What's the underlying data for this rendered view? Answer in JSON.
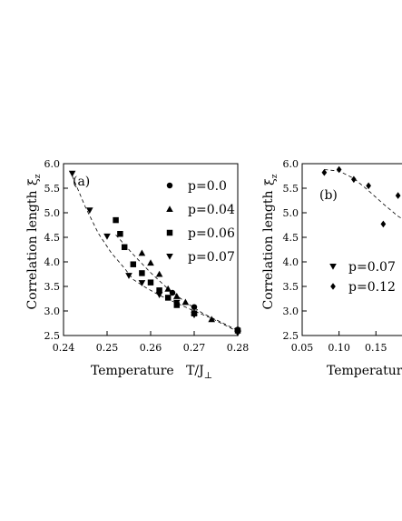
{
  "chart_data": [
    {
      "type": "scatter",
      "panel_label": "(a)",
      "xlabel": "Temperature   T/J",
      "xlabel_sub": "⊥",
      "ylabel": "Correlation length",
      "ylabel_symbol": "ξ",
      "ylabel_sub": "z",
      "xlim": [
        0.24,
        0.28
      ],
      "ylim": [
        2.5,
        6.0
      ],
      "xticks": [
        "0.24",
        "0.25",
        "0.26",
        "0.27",
        "0.28"
      ],
      "yticks": [
        "2.5",
        "3.0",
        "3.5",
        "4.0",
        "4.5",
        "5.0",
        "5.5",
        "6.0"
      ],
      "x_tick_values": [
        0.24,
        0.25,
        0.26,
        0.27,
        0.28
      ],
      "y_tick_values": [
        2.5,
        3.0,
        3.5,
        4.0,
        4.5,
        5.0,
        5.5,
        6.0
      ],
      "legend_position": "top-right",
      "series": [
        {
          "name": "p=0.0",
          "marker": "circle",
          "x": [
            0.265,
            0.27,
            0.28
          ],
          "y": [
            3.37,
            3.08,
            2.62
          ]
        },
        {
          "name": "p=0.04",
          "marker": "triangle-up",
          "x": [
            0.258,
            0.26,
            0.262,
            0.264,
            0.266,
            0.268,
            0.27,
            0.274,
            0.28
          ],
          "y": [
            4.18,
            3.98,
            3.75,
            3.45,
            3.3,
            3.18,
            2.97,
            2.83,
            2.63
          ]
        },
        {
          "name": "p=0.06",
          "marker": "square",
          "x": [
            0.252,
            0.253,
            0.254,
            0.256,
            0.258,
            0.26,
            0.262,
            0.264,
            0.266,
            0.27,
            0.28
          ],
          "y": [
            4.85,
            4.57,
            4.3,
            3.95,
            3.77,
            3.58,
            3.42,
            3.27,
            3.12,
            2.95,
            2.6
          ]
        },
        {
          "name": "p=0.07",
          "marker": "triangle-down",
          "x": [
            0.242,
            0.246,
            0.25,
            0.255,
            0.258,
            0.262,
            0.266,
            0.27,
            0.28
          ],
          "y": [
            5.8,
            5.05,
            4.52,
            3.72,
            3.57,
            3.33,
            3.17,
            2.92,
            2.55
          ]
        }
      ],
      "fit_line": {
        "style": "dashed",
        "x": [
          0.242,
          0.245,
          0.248,
          0.251,
          0.254,
          0.256,
          0.259,
          0.262,
          0.266,
          0.27,
          0.274,
          0.28
        ],
        "y": [
          5.75,
          5.12,
          4.58,
          4.18,
          3.87,
          3.64,
          3.47,
          3.32,
          3.16,
          3.0,
          2.85,
          2.58
        ]
      },
      "fit_line_2": {
        "style": "dashed",
        "x": [
          0.252,
          0.256,
          0.26,
          0.264,
          0.268,
          0.272,
          0.276,
          0.28
        ],
        "y": [
          4.55,
          4.15,
          3.78,
          3.45,
          3.18,
          2.95,
          2.78,
          2.6
        ]
      }
    },
    {
      "type": "scatter",
      "panel_label": "(b)",
      "xlabel": "Temperature",
      "ylabel": "Correlation length",
      "ylabel_symbol": "ξ",
      "ylabel_sub": "z",
      "xlim": [
        0.05,
        0.21
      ],
      "ylim": [
        2.5,
        6.0
      ],
      "xticks": [
        "0.05",
        "0.10",
        "0.15"
      ],
      "yticks": [
        "2.5",
        "3.0",
        "3.5",
        "4.0",
        "4.5",
        "5.0",
        "5.5",
        "6.0"
      ],
      "x_tick_values": [
        0.05,
        0.1,
        0.15
      ],
      "y_tick_values": [
        2.5,
        3.0,
        3.5,
        4.0,
        4.5,
        5.0,
        5.5,
        6.0
      ],
      "legend_position": "bottom-left",
      "series": [
        {
          "name": "p=0.07",
          "marker": "triangle-down",
          "x": [],
          "y": []
        },
        {
          "name": "p=0.12",
          "marker": "diamond",
          "x": [
            0.08,
            0.1,
            0.12,
            0.14,
            0.16,
            0.18
          ],
          "y": [
            5.82,
            5.88,
            5.68,
            5.55,
            4.77,
            5.35
          ]
        }
      ],
      "fit_line": {
        "style": "dashed",
        "x": [
          0.08,
          0.1,
          0.12,
          0.14,
          0.16,
          0.18,
          0.2
        ],
        "y": [
          5.88,
          5.85,
          5.7,
          5.45,
          5.18,
          4.93,
          4.75
        ]
      }
    }
  ]
}
